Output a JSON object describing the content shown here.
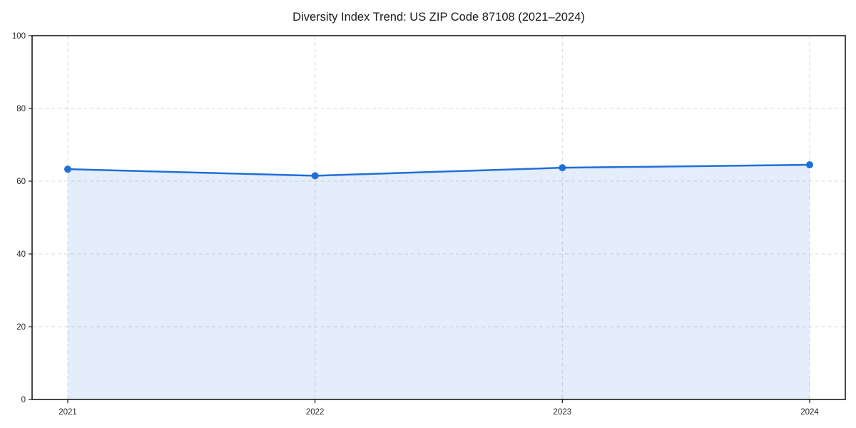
{
  "chart_data": {
    "type": "area",
    "title": "Diversity Index Trend: US ZIP Code 87108 (2021–2024)",
    "categories": [
      "2021",
      "2022",
      "2023",
      "2024"
    ],
    "series": [
      {
        "name": "Diversity Index",
        "values": [
          63.3,
          61.5,
          63.7,
          64.5
        ]
      }
    ],
    "xlabel": "",
    "ylabel": "",
    "ylim": [
      0,
      100
    ],
    "yticks": [
      0,
      20,
      40,
      60,
      80,
      100
    ],
    "grid": "dashed",
    "legend": "none",
    "colors": {
      "line": "#1f6fd8",
      "marker": "#1f6fd8",
      "fill": "#1f6fd8",
      "fill_opacity": 0.12,
      "grid": "#d9d9d9",
      "spine": "#1a1a1a",
      "tick_text": "#262626",
      "background": "#ffffff"
    }
  }
}
